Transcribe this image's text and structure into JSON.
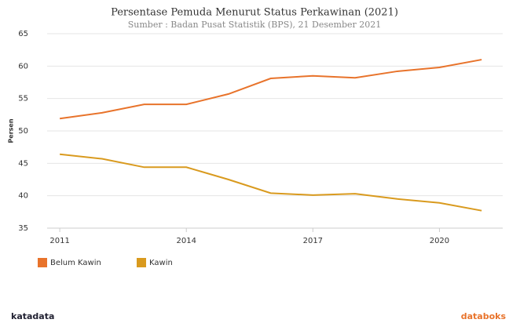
{
  "chart_data": {
    "type": "line",
    "title": "Persentase Pemuda Menurut Status Perkawinan (2021)",
    "subtitle": "Sumber : Badan Pusat Statistik (BPS), 21 Desember 2021",
    "y_label": "Persen",
    "x": [
      2011,
      2012,
      2013,
      2014,
      2015,
      2016,
      2017,
      2018,
      2019,
      2020,
      2021
    ],
    "series": [
      {
        "name": "Belum Kawin",
        "color": "#e8732b",
        "values": [
          51.9,
          52.8,
          54.1,
          54.1,
          55.7,
          58.1,
          58.5,
          58.2,
          59.2,
          59.8,
          61.0
        ]
      },
      {
        "name": "Kawin",
        "color": "#d99a1e",
        "values": [
          46.4,
          45.7,
          44.4,
          44.4,
          42.5,
          40.4,
          40.1,
          40.3,
          39.5,
          38.9,
          37.7
        ]
      }
    ],
    "xlim": [
      2010.7,
      2021.5
    ],
    "xticks": [
      2011,
      2014,
      2017,
      2020
    ],
    "ylim": [
      35,
      65
    ],
    "yticks": [
      35,
      40,
      45,
      50,
      55,
      60,
      65
    ],
    "grid": true
  },
  "footer": {
    "left": "katadata",
    "right": "databoks"
  }
}
